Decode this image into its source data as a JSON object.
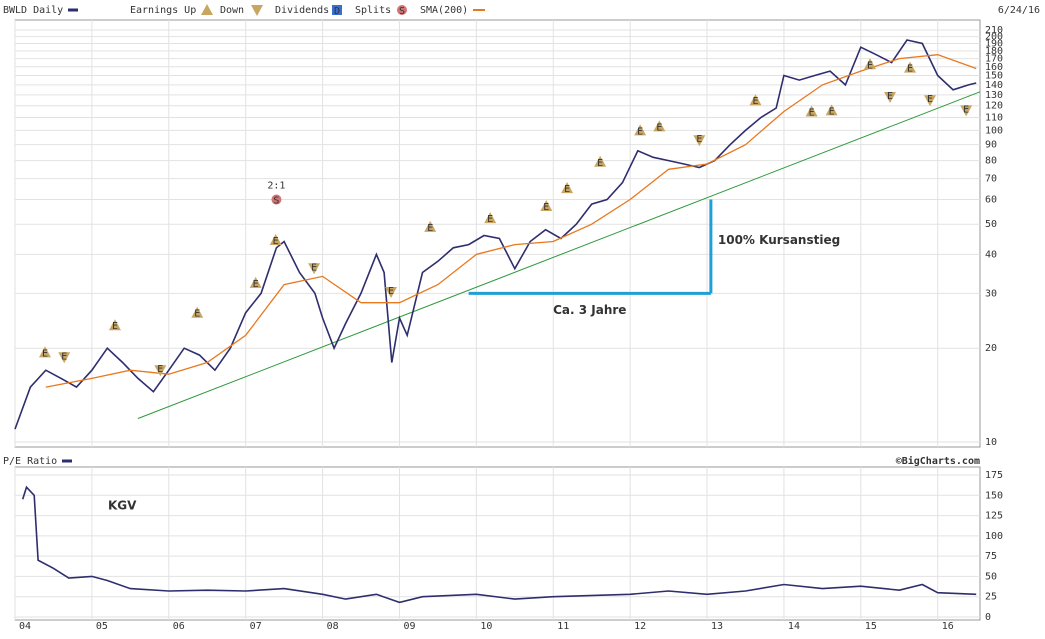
{
  "chart_data": [
    {
      "type": "line",
      "title": "BWLD Daily",
      "date": "6/24/16",
      "legend_labels": [
        "Earnings Up",
        "Down",
        "Dividends",
        "Splits"
      ],
      "marker_letters": {
        "earnings": "E",
        "dividends": "D",
        "splits": "S"
      },
      "log_scale": true,
      "grid": true,
      "xlim": [
        2004,
        2016.55
      ],
      "xticks": [
        2004,
        2005,
        2006,
        2007,
        2008,
        2009,
        2010,
        2011,
        2012,
        2013,
        2014,
        2015,
        2016
      ],
      "ylim": [
        10,
        210
      ],
      "yticks": [
        10,
        20,
        30,
        40,
        50,
        60,
        70,
        80,
        90,
        100,
        110,
        120,
        130,
        140,
        150,
        160,
        170,
        180,
        190,
        200,
        210
      ],
      "series": [
        {
          "name": "BWLD Daily",
          "color": "#2e2e6e",
          "x": [
            2004.0,
            2004.2,
            2004.4,
            2004.6,
            2004.8,
            2005.0,
            2005.2,
            2005.4,
            2005.6,
            2005.8,
            2006.0,
            2006.2,
            2006.4,
            2006.6,
            2006.8,
            2007.0,
            2007.2,
            2007.4,
            2007.5,
            2007.7,
            2007.9,
            2008.0,
            2008.15,
            2008.3,
            2008.5,
            2008.7,
            2008.8,
            2008.9,
            2009.0,
            2009.1,
            2009.3,
            2009.5,
            2009.7,
            2009.9,
            2010.1,
            2010.3,
            2010.5,
            2010.7,
            2010.9,
            2011.1,
            2011.3,
            2011.5,
            2011.7,
            2011.9,
            2012.1,
            2012.3,
            2012.5,
            2012.7,
            2012.9,
            2013.1,
            2013.3,
            2013.5,
            2013.7,
            2013.9,
            2014.0,
            2014.2,
            2014.4,
            2014.6,
            2014.8,
            2015.0,
            2015.2,
            2015.4,
            2015.6,
            2015.8,
            2016.0,
            2016.2,
            2016.4,
            2016.5
          ],
          "values": [
            11,
            15,
            17,
            16,
            15,
            17,
            20,
            18,
            16,
            14.5,
            17,
            20,
            19,
            17,
            20,
            26,
            30,
            42,
            44,
            35,
            30,
            25,
            20,
            24,
            30,
            40,
            35,
            18,
            25,
            22,
            35,
            38,
            42,
            43,
            46,
            45,
            36,
            44,
            48,
            45,
            50,
            58,
            60,
            68,
            86,
            82,
            80,
            78,
            76,
            80,
            90,
            100,
            110,
            118,
            150,
            145,
            150,
            155,
            140,
            185,
            175,
            165,
            195,
            190,
            150,
            135,
            140,
            142
          ]
        },
        {
          "name": "SMA(200)",
          "color": "#e8781e",
          "x": [
            2004.4,
            2005.0,
            2005.5,
            2006.0,
            2006.5,
            2007.0,
            2007.5,
            2008.0,
            2008.5,
            2009.0,
            2009.5,
            2010.0,
            2010.5,
            2011.0,
            2011.5,
            2012.0,
            2012.5,
            2013.0,
            2013.5,
            2014.0,
            2014.5,
            2015.0,
            2015.5,
            2016.0,
            2016.5
          ],
          "values": [
            15,
            16,
            17,
            16.5,
            18,
            22,
            32,
            34,
            28,
            28,
            32,
            40,
            43,
            44,
            50,
            60,
            75,
            78,
            90,
            115,
            140,
            155,
            170,
            175,
            158
          ]
        }
      ],
      "earnings_up": {
        "x": [
          2004.39,
          2005.3,
          2006.37,
          2007.13,
          2007.39,
          2009.4,
          2010.18,
          2010.91,
          2011.18,
          2011.61,
          2012.13,
          2012.38,
          2013.63,
          2014.36,
          2014.62,
          2015.12,
          2015.64
        ],
        "values": [
          19.4,
          23.7,
          26,
          32.4,
          44.5,
          49,
          52.3,
          57.2,
          65.3,
          79.3,
          100,
          103,
          125,
          115,
          116,
          163,
          159
        ]
      },
      "earnings_down": {
        "x": [
          2004.64,
          2005.89,
          2007.89,
          2008.89,
          2012.9,
          2015.38,
          2015.9,
          2016.37
        ],
        "values": [
          18.7,
          17,
          36.1,
          30.3,
          93,
          128,
          125,
          116
        ]
      },
      "split": {
        "x": 2007.4,
        "value": 60,
        "label": "2:1"
      },
      "trendline": {
        "x": [
          2005.6,
          2016.55
        ],
        "values": [
          11.9,
          133
        ]
      },
      "bracket": {
        "x": [
          2009.9,
          2013.05
        ],
        "values": [
          30,
          60
        ],
        "labels": [
          "Ca. 3 Jahre",
          "100% Kursanstieg"
        ]
      }
    },
    {
      "type": "line",
      "title": "P/E Ratio",
      "annotation": "KGV",
      "credit": "©BigCharts.com",
      "grid": true,
      "xlim": [
        2004,
        2016.55
      ],
      "xticks": [
        {
          "value": 2004,
          "label": "04"
        },
        {
          "value": 2005,
          "label": "05"
        },
        {
          "value": 2006,
          "label": "06"
        },
        {
          "value": 2007,
          "label": "07"
        },
        {
          "value": 2008,
          "label": "08"
        },
        {
          "value": 2009,
          "label": "09"
        },
        {
          "value": 2010,
          "label": "10"
        },
        {
          "value": 2011,
          "label": "11"
        },
        {
          "value": 2012,
          "label": "12"
        },
        {
          "value": 2013,
          "label": "13"
        },
        {
          "value": 2014,
          "label": "14"
        },
        {
          "value": 2015,
          "label": "15"
        },
        {
          "value": 2016,
          "label": "16"
        }
      ],
      "ylim": [
        0,
        175
      ],
      "yticks": [
        0,
        25,
        50,
        75,
        100,
        125,
        150,
        175
      ],
      "series": [
        {
          "name": "P/E Ratio",
          "color": "#2e2e6e",
          "x": [
            2004.1,
            2004.15,
            2004.25,
            2004.3,
            2004.5,
            2004.7,
            2005.0,
            2005.2,
            2005.5,
            2006.0,
            2006.5,
            2007.0,
            2007.5,
            2008.0,
            2008.3,
            2008.7,
            2009.0,
            2009.3,
            2010.0,
            2010.5,
            2011.0,
            2012.0,
            2012.5,
            2013.0,
            2013.5,
            2014.0,
            2014.5,
            2015.0,
            2015.5,
            2015.8,
            2016.0,
            2016.5
          ],
          "values": [
            145,
            160,
            150,
            70,
            60,
            48,
            50,
            45,
            35,
            32,
            33,
            32,
            35,
            28,
            22,
            28,
            18,
            25,
            28,
            22,
            25,
            28,
            32,
            28,
            32,
            40,
            35,
            38,
            33,
            40,
            30,
            28
          ]
        }
      ]
    }
  ]
}
